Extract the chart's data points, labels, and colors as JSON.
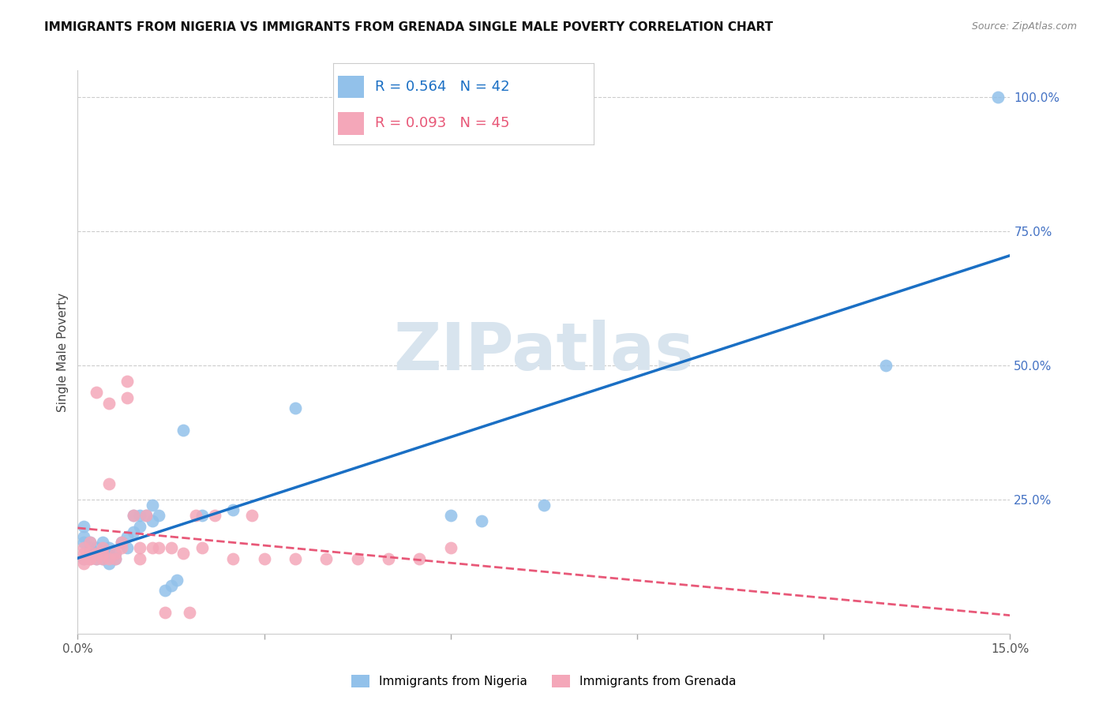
{
  "title": "IMMIGRANTS FROM NIGERIA VS IMMIGRANTS FROM GRENADA SINGLE MALE POVERTY CORRELATION CHART",
  "source": "Source: ZipAtlas.com",
  "ylabel": "Single Male Poverty",
  "xlim": [
    0.0,
    0.15
  ],
  "ylim": [
    0.0,
    1.05
  ],
  "nigeria_color": "#92C1EA",
  "grenada_color": "#F4A7B9",
  "nigeria_line_color": "#1A6FC4",
  "grenada_line_color": "#E85878",
  "right_axis_color": "#4472C4",
  "watermark_color": "#D8E4EE",
  "legend_nigeria": "R = 0.564   N = 42",
  "legend_grenada": "R = 0.093   N = 45",
  "legend_label_nigeria": "Immigrants from Nigeria",
  "legend_label_grenada": "Immigrants from Grenada",
  "nigeria_x": [
    0.001,
    0.001,
    0.001,
    0.001,
    0.002,
    0.002,
    0.002,
    0.003,
    0.003,
    0.003,
    0.003,
    0.004,
    0.004,
    0.004,
    0.005,
    0.005,
    0.005,
    0.006,
    0.006,
    0.007,
    0.008,
    0.008,
    0.009,
    0.009,
    0.01,
    0.01,
    0.011,
    0.012,
    0.012,
    0.013,
    0.014,
    0.015,
    0.016,
    0.017,
    0.02,
    0.025,
    0.035,
    0.06,
    0.065,
    0.075,
    0.13,
    0.148
  ],
  "nigeria_y": [
    0.14,
    0.17,
    0.18,
    0.2,
    0.15,
    0.16,
    0.17,
    0.14,
    0.15,
    0.15,
    0.16,
    0.14,
    0.15,
    0.17,
    0.13,
    0.15,
    0.16,
    0.14,
    0.15,
    0.17,
    0.16,
    0.18,
    0.19,
    0.22,
    0.2,
    0.22,
    0.22,
    0.21,
    0.24,
    0.22,
    0.08,
    0.09,
    0.1,
    0.38,
    0.22,
    0.23,
    0.42,
    0.22,
    0.21,
    0.24,
    0.5,
    1.0
  ],
  "grenada_x": [
    0.001,
    0.001,
    0.001,
    0.001,
    0.002,
    0.002,
    0.002,
    0.002,
    0.003,
    0.003,
    0.003,
    0.004,
    0.004,
    0.004,
    0.005,
    0.005,
    0.005,
    0.006,
    0.006,
    0.007,
    0.007,
    0.008,
    0.008,
    0.009,
    0.01,
    0.01,
    0.011,
    0.012,
    0.013,
    0.014,
    0.015,
    0.017,
    0.018,
    0.019,
    0.02,
    0.022,
    0.025,
    0.028,
    0.03,
    0.035,
    0.04,
    0.045,
    0.05,
    0.055,
    0.06
  ],
  "grenada_y": [
    0.13,
    0.14,
    0.15,
    0.16,
    0.14,
    0.14,
    0.15,
    0.17,
    0.14,
    0.15,
    0.45,
    0.14,
    0.15,
    0.16,
    0.14,
    0.28,
    0.43,
    0.14,
    0.15,
    0.16,
    0.17,
    0.44,
    0.47,
    0.22,
    0.14,
    0.16,
    0.22,
    0.16,
    0.16,
    0.04,
    0.16,
    0.15,
    0.04,
    0.22,
    0.16,
    0.22,
    0.14,
    0.22,
    0.14,
    0.14,
    0.14,
    0.14,
    0.14,
    0.14,
    0.16
  ]
}
